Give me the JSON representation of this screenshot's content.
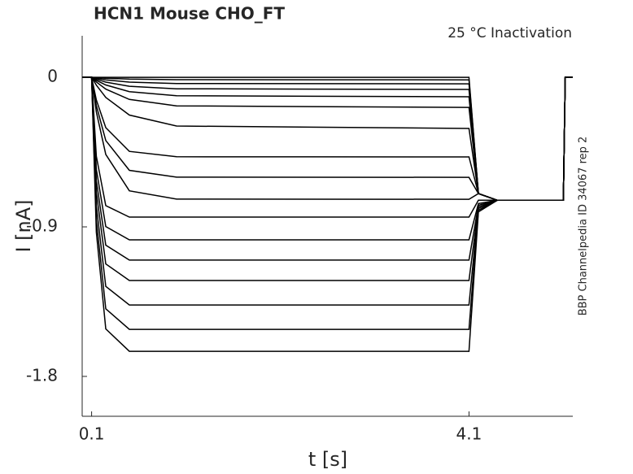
{
  "chart_data": {
    "type": "line",
    "title": "HCN1  Mouse  CHO_FT",
    "subtitle": "25 °C  Inactivation",
    "side_note": "BBP Channelpedia ID 34067 rep 2",
    "x_label": "t [s]",
    "y_label": "I [nA]",
    "color": "#000000",
    "xlim": [
      0,
      5.2
    ],
    "ylim": [
      -2.04,
      0.25
    ],
    "xticks": [
      0.1,
      4.1
    ],
    "yticks": [
      0,
      -0.9,
      -1.8
    ],
    "x": [
      0,
      0.1,
      0.15,
      0.25,
      0.5,
      1,
      4.1,
      4.2,
      4.4,
      5.1,
      5.12,
      5.2
    ],
    "series": [
      {
        "values": [
          0,
          0,
          0,
          0,
          0,
          0,
          0,
          -0.7,
          -0.74,
          -0.74,
          0,
          0
        ]
      },
      {
        "values": [
          0,
          0,
          -0.002,
          -0.006,
          -0.011,
          -0.014,
          -0.015,
          -0.7,
          -0.74,
          -0.74,
          0,
          0
        ]
      },
      {
        "values": [
          0,
          0,
          -0.006,
          -0.015,
          -0.029,
          -0.037,
          -0.039,
          -0.7,
          -0.74,
          -0.74,
          0,
          0
        ]
      },
      {
        "values": [
          0,
          0,
          -0.011,
          -0.029,
          -0.054,
          -0.069,
          -0.073,
          -0.7,
          -0.74,
          -0.74,
          0,
          0
        ]
      },
      {
        "values": [
          0,
          0,
          -0.018,
          -0.046,
          -0.086,
          -0.111,
          -0.117,
          -0.7,
          -0.74,
          -0.74,
          0,
          0
        ]
      },
      {
        "values": [
          0,
          0,
          -0.028,
          -0.071,
          -0.133,
          -0.172,
          -0.181,
          -0.7,
          -0.74,
          -0.74,
          0,
          0
        ]
      },
      {
        "values": [
          0,
          0,
          -0.047,
          -0.121,
          -0.227,
          -0.293,
          -0.308,
          -0.7,
          -0.74,
          -0.74,
          0,
          0
        ]
      },
      {
        "values": [
          0,
          0,
          -0.136,
          -0.303,
          -0.446,
          -0.478,
          -0.479,
          -0.7,
          -0.74,
          -0.74,
          0,
          0
        ]
      },
      {
        "values": [
          0,
          0,
          -0.17,
          -0.38,
          -0.56,
          -0.601,
          -0.602,
          -0.7,
          -0.74,
          -0.74,
          0,
          0
        ]
      },
      {
        "values": [
          0,
          0,
          -0.208,
          -0.464,
          -0.683,
          -0.733,
          -0.734,
          -0.7,
          -0.74,
          -0.74,
          0,
          0
        ]
      },
      {
        "values": [
          0,
          0,
          -0.475,
          -0.772,
          -0.841,
          -0.841,
          -0.841,
          -0.74,
          -0.74,
          -0.74,
          0,
          0
        ]
      },
      {
        "values": [
          0,
          0,
          -0.553,
          -0.898,
          -0.978,
          -0.978,
          -0.978,
          -0.76,
          -0.74,
          -0.74,
          0,
          0
        ]
      },
      {
        "values": [
          0,
          0,
          -0.622,
          -1.01,
          -1.1,
          -1.1,
          -1.1,
          -0.77,
          -0.74,
          -0.74,
          0,
          0
        ]
      },
      {
        "values": [
          0,
          0,
          -0.691,
          -1.123,
          -1.223,
          -1.223,
          -1.223,
          -0.78,
          -0.74,
          -0.74,
          0,
          0
        ]
      },
      {
        "values": [
          0,
          0,
          -0.774,
          -1.258,
          -1.37,
          -1.37,
          -1.37,
          -0.79,
          -0.74,
          -0.74,
          0,
          0
        ]
      },
      {
        "values": [
          0,
          0,
          -0.857,
          -1.393,
          -1.517,
          -1.517,
          -1.517,
          -0.8,
          -0.74,
          -0.74,
          0,
          0
        ]
      },
      {
        "values": [
          0,
          0,
          -0.932,
          -1.514,
          -1.649,
          -1.649,
          -1.649,
          -0.81,
          -0.74,
          -0.74,
          0,
          0
        ]
      }
    ]
  }
}
